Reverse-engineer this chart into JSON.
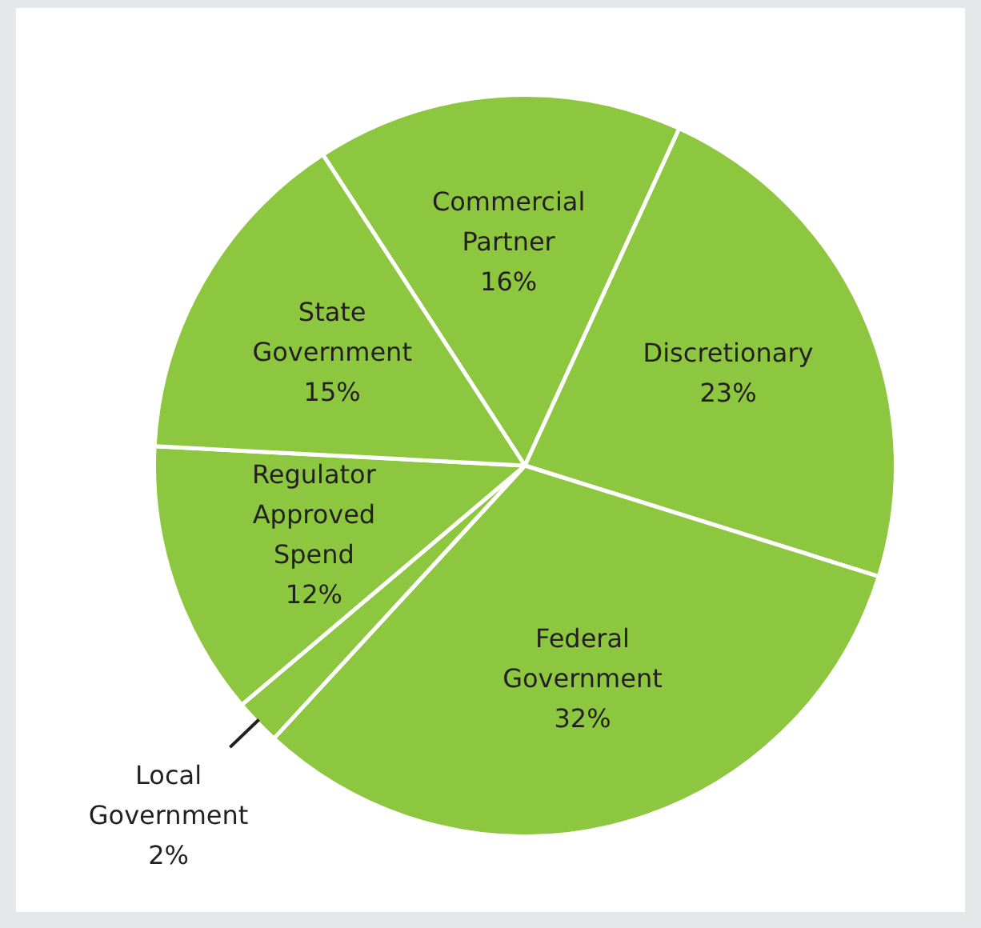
{
  "chart_data": {
    "type": "pie",
    "categories": [
      "Commercial Partner",
      "Discretionary",
      "Federal Government",
      "Local Government",
      "Regulator Approved Spend",
      "State Government"
    ],
    "values": [
      16,
      23,
      32,
      2,
      12,
      15
    ],
    "value_labels": [
      "16%",
      "23%",
      "32%",
      "2%",
      "12%",
      "15%"
    ],
    "colors": [
      "#8dc63f",
      "#8dc63f",
      "#8dc63f",
      "#8dc63f",
      "#8dc63f",
      "#8dc63f"
    ],
    "legend": false
  }
}
